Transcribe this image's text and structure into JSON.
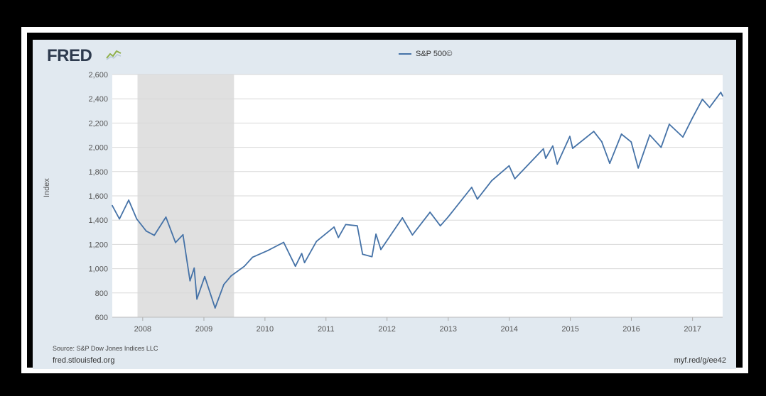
{
  "header": {
    "logo_text": "FRED",
    "logo_icon": "fred-line-graph-icon"
  },
  "legend": {
    "label": "S&P 500©"
  },
  "footer": {
    "source": "Source: S&P Dow Jones Indices LLC",
    "site": "fred.stlouisfed.org",
    "short_link": "myf.red/g/ee42"
  },
  "colors": {
    "series": "#4572a7",
    "panel": "#e1e9f0",
    "recession": "#e0e0e0",
    "grid": "#d8d8d8"
  },
  "chart_data": {
    "type": "line",
    "title": "",
    "xlabel": "",
    "ylabel": "Index",
    "x_ticks": [
      "2008",
      "2009",
      "2010",
      "2011",
      "2012",
      "2013",
      "2014",
      "2015",
      "2016",
      "2017"
    ],
    "y_ticks": [
      "600",
      "800",
      "1,000",
      "1,200",
      "1,400",
      "1,600",
      "1,800",
      "2,000",
      "2,200",
      "2,400",
      "2,600"
    ],
    "ylim": [
      600,
      2600
    ],
    "xlim": [
      "2007-07-03",
      "2017-06-30"
    ],
    "recession_shading": [
      [
        "2007-12-01",
        "2009-06-30"
      ]
    ],
    "grid": "horizontal",
    "legend_position": "top-center",
    "series": [
      {
        "name": "S&P 500©",
        "x": [
          "2007-07-03",
          "2007-08-15",
          "2007-10-09",
          "2007-11-26",
          "2008-01-22",
          "2008-03-10",
          "2008-05-19",
          "2008-07-15",
          "2008-08-29",
          "2008-10-10",
          "2008-11-04",
          "2008-11-20",
          "2009-01-06",
          "2009-03-09",
          "2009-04-30",
          "2009-06-12",
          "2009-08-31",
          "2009-10-19",
          "2010-01-19",
          "2010-04-23",
          "2010-07-02",
          "2010-08-09",
          "2010-08-26",
          "2010-11-05",
          "2011-02-18",
          "2011-03-16",
          "2011-04-29",
          "2011-07-07",
          "2011-08-08",
          "2011-10-03",
          "2011-10-27",
          "2011-11-25",
          "2012-04-02",
          "2012-06-01",
          "2012-09-14",
          "2012-11-15",
          "2012-12-31",
          "2013-05-21",
          "2013-06-24",
          "2013-09-18",
          "2013-12-31",
          "2014-02-03",
          "2014-07-24",
          "2014-08-07",
          "2014-09-18",
          "2014-10-15",
          "2014-12-29",
          "2015-01-15",
          "2015-05-21",
          "2015-07-08",
          "2015-08-25",
          "2015-11-03",
          "2015-12-31",
          "2016-02-11",
          "2016-04-20",
          "2016-06-27",
          "2016-08-15",
          "2016-11-04",
          "2016-12-30",
          "2017-03-01",
          "2017-04-13",
          "2017-06-19",
          "2017-06-30"
        ],
        "values": [
          1520,
          1410,
          1565,
          1410,
          1310,
          1275,
          1425,
          1215,
          1280,
          900,
          1005,
          750,
          935,
          676,
          870,
          940,
          1020,
          1095,
          1150,
          1217,
          1020,
          1125,
          1050,
          1225,
          1343,
          1257,
          1364,
          1353,
          1119,
          1099,
          1285,
          1158,
          1419,
          1278,
          1465,
          1353,
          1426,
          1670,
          1573,
          1725,
          1848,
          1741,
          1988,
          1910,
          2011,
          1862,
          2090,
          1992,
          2131,
          2047,
          1868,
          2109,
          2044,
          1829,
          2102,
          2000,
          2190,
          2085,
          2239,
          2396,
          2329,
          2453,
          2423
        ]
      }
    ]
  }
}
